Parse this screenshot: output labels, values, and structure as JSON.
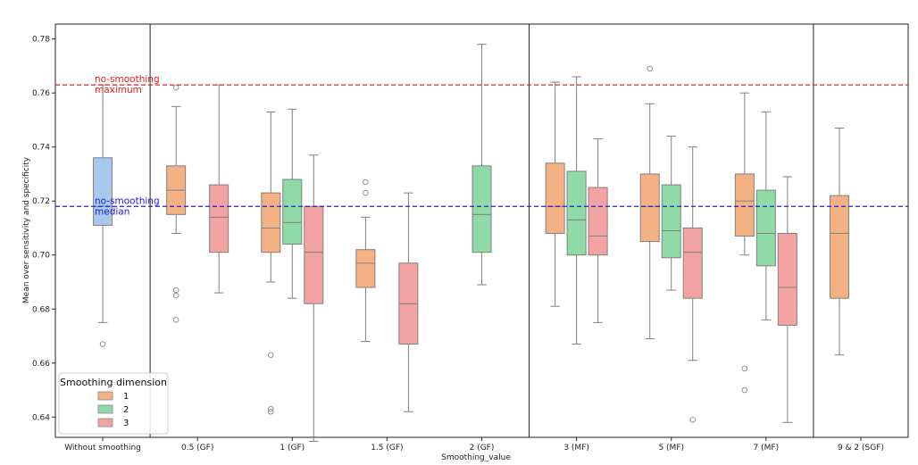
{
  "chart_data": {
    "type": "box",
    "xlabel": "Smoothing_value",
    "ylabel": "Mean over sensitivity and specificity",
    "ylim": [
      0.6325,
      0.7855
    ],
    "yticks": [
      0.64,
      0.66,
      0.68,
      0.7,
      0.72,
      0.74,
      0.76,
      0.78
    ],
    "categories": [
      "Without smoothing",
      "0.5 (GF)",
      "1 (GF)",
      "1.5 (GF)",
      "2 (GF)",
      "3 (MF)",
      "5 (MF)",
      "7 (MF)",
      "9 & 2 (SGF)"
    ],
    "group_separators_after": [
      "Without smoothing",
      "2 (GF)",
      "7 (MF)"
    ],
    "grid": false,
    "legend": {
      "title": "Smoothing dimension",
      "placement": "lower-left",
      "entries": [
        {
          "label": "1",
          "color": "#f4b183"
        },
        {
          "label": "2",
          "color": "#8fdaa6"
        },
        {
          "label": "3",
          "color": "#f4a3a3"
        }
      ]
    },
    "colors": {
      "baseline": "#a9c8ee",
      "dim1": "#f4b183",
      "dim2": "#8fdaa6",
      "dim3": "#f4a3a3",
      "whisker": "#808080"
    },
    "reference_lines": [
      {
        "label_lines": [
          "no-smoothing",
          "maximum"
        ],
        "value": 0.763,
        "color": "#e02020",
        "style": "dashed"
      },
      {
        "label_lines": [
          "no-smoothing",
          "median"
        ],
        "value": 0.718,
        "color": "#2020d0",
        "style": "dashed"
      }
    ],
    "boxes": [
      {
        "category": "Without smoothing",
        "series": "baseline",
        "whislo": 0.675,
        "q1": 0.711,
        "median": 0.718,
        "q3": 0.736,
        "whishi": 0.763,
        "fliers": [
          0.667
        ]
      },
      {
        "category": "0.5 (GF)",
        "series": "1",
        "whislo": 0.708,
        "q1": 0.715,
        "median": 0.724,
        "q3": 0.733,
        "whishi": 0.755,
        "fliers": [
          0.762,
          0.687,
          0.685,
          0.676
        ]
      },
      {
        "category": "0.5 (GF)",
        "series": "3",
        "whislo": 0.686,
        "q1": 0.701,
        "median": 0.714,
        "q3": 0.726,
        "whishi": 0.763,
        "fliers": []
      },
      {
        "category": "1 (GF)",
        "series": "1",
        "whislo": 0.69,
        "q1": 0.701,
        "median": 0.71,
        "q3": 0.723,
        "whishi": 0.753,
        "fliers": [
          0.663,
          0.643,
          0.642
        ]
      },
      {
        "category": "1 (GF)",
        "series": "2",
        "whislo": 0.684,
        "q1": 0.704,
        "median": 0.712,
        "q3": 0.728,
        "whishi": 0.754,
        "fliers": []
      },
      {
        "category": "1 (GF)",
        "series": "3",
        "whislo": 0.631,
        "q1": 0.682,
        "median": 0.701,
        "q3": 0.718,
        "whishi": 0.737,
        "fliers": []
      },
      {
        "category": "1.5 (GF)",
        "series": "1",
        "whislo": 0.668,
        "q1": 0.688,
        "median": 0.697,
        "q3": 0.702,
        "whishi": 0.714,
        "fliers": [
          0.727,
          0.723
        ]
      },
      {
        "category": "1.5 (GF)",
        "series": "3",
        "whislo": 0.642,
        "q1": 0.667,
        "median": 0.682,
        "q3": 0.697,
        "whishi": 0.723,
        "fliers": []
      },
      {
        "category": "2 (GF)",
        "series": "2",
        "whislo": 0.689,
        "q1": 0.701,
        "median": 0.715,
        "q3": 0.733,
        "whishi": 0.778,
        "fliers": []
      },
      {
        "category": "3 (MF)",
        "series": "1",
        "whislo": 0.681,
        "q1": 0.708,
        "median": 0.718,
        "q3": 0.734,
        "whishi": 0.764,
        "fliers": []
      },
      {
        "category": "3 (MF)",
        "series": "2",
        "whislo": 0.667,
        "q1": 0.7,
        "median": 0.713,
        "q3": 0.731,
        "whishi": 0.766,
        "fliers": []
      },
      {
        "category": "3 (MF)",
        "series": "3",
        "whislo": 0.675,
        "q1": 0.7,
        "median": 0.707,
        "q3": 0.725,
        "whishi": 0.743,
        "fliers": []
      },
      {
        "category": "5 (MF)",
        "series": "1",
        "whislo": 0.669,
        "q1": 0.705,
        "median": 0.718,
        "q3": 0.73,
        "whishi": 0.756,
        "fliers": [
          0.769
        ]
      },
      {
        "category": "5 (MF)",
        "series": "2",
        "whislo": 0.687,
        "q1": 0.699,
        "median": 0.709,
        "q3": 0.726,
        "whishi": 0.744,
        "fliers": []
      },
      {
        "category": "5 (MF)",
        "series": "3",
        "whislo": 0.661,
        "q1": 0.684,
        "median": 0.701,
        "q3": 0.71,
        "whishi": 0.74,
        "fliers": [
          0.639
        ]
      },
      {
        "category": "7 (MF)",
        "series": "1",
        "whislo": 0.7,
        "q1": 0.707,
        "median": 0.72,
        "q3": 0.73,
        "whishi": 0.76,
        "fliers": [
          0.658,
          0.65
        ]
      },
      {
        "category": "7 (MF)",
        "series": "2",
        "whislo": 0.676,
        "q1": 0.696,
        "median": 0.708,
        "q3": 0.724,
        "whishi": 0.753,
        "fliers": []
      },
      {
        "category": "7 (MF)",
        "series": "3",
        "whislo": 0.638,
        "q1": 0.674,
        "median": 0.688,
        "q3": 0.708,
        "whishi": 0.729,
        "fliers": []
      },
      {
        "category": "9 & 2 (SGF)",
        "series": "1",
        "whislo": 0.663,
        "q1": 0.684,
        "median": 0.708,
        "q3": 0.722,
        "whishi": 0.747,
        "fliers": []
      }
    ]
  }
}
